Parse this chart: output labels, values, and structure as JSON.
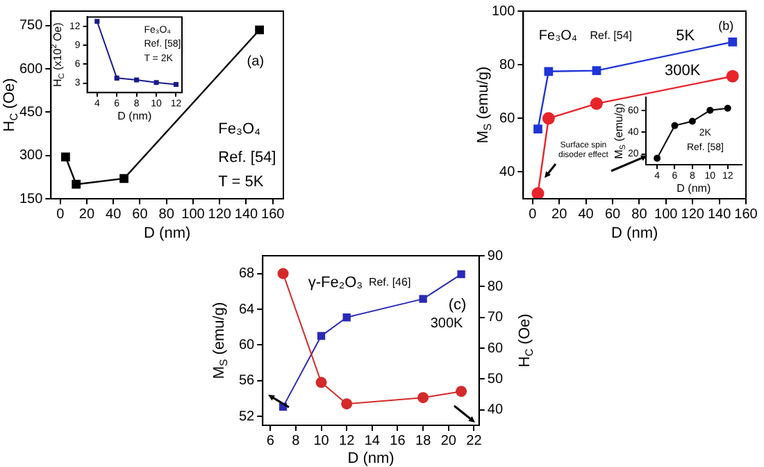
{
  "chart_data": [
    {
      "type": "line",
      "xlabel": "D (nm)",
      "ylabel": "H$_{C}$ (Oe)",
      "xlim": [
        -7,
        168
      ],
      "xticks": [
        0,
        20,
        40,
        60,
        80,
        100,
        120,
        140,
        160
      ],
      "ylim": [
        150,
        800
      ],
      "yticks": [
        150,
        300,
        450,
        600,
        750
      ],
      "x": [
        4,
        12,
        48,
        150
      ],
      "series": [
        {
          "color": "#000000",
          "marker": "square",
          "values": [
            295,
            200,
            220,
            735
          ]
        }
      ],
      "annotations": [
        "(a)",
        "Fe₃O₄",
        "Ref. [54]",
        "T = 5K"
      ]
    },
    {
      "type": "line",
      "xlabel": "D (nm)",
      "ylabel": "H$_{C}$ (x10$^{2}$ Oe)",
      "xlim": [
        3,
        12.6
      ],
      "xticks": [
        4,
        6,
        8,
        10,
        12
      ],
      "ylim": [
        1.5,
        13.5
      ],
      "yticks": [
        3,
        6,
        9,
        12
      ],
      "x": [
        4,
        6,
        8,
        10,
        12
      ],
      "series": [
        {
          "color": "#1a1a8c",
          "marker": "square",
          "values": [
            12.8,
            3.8,
            3.5,
            3.1,
            2.8
          ]
        }
      ],
      "annotations": [
        "Fe₃O₄",
        "Ref. [58]",
        "T = 2K"
      ]
    },
    {
      "type": "line",
      "xlabel": "D (nm)",
      "ylabel": "M$_{S}$ (emu/g)",
      "xlim": [
        -7,
        160
      ],
      "xticks": [
        0,
        20,
        40,
        60,
        80,
        100,
        120,
        140,
        160
      ],
      "ylim": [
        30,
        100
      ],
      "yticks": [
        40,
        60,
        80,
        100
      ],
      "x": [
        4,
        12,
        48,
        150
      ],
      "series": [
        {
          "name": "5K",
          "color": "#1f35d6",
          "marker": "square",
          "values": [
            56,
            77.5,
            77.8,
            88.5
          ]
        },
        {
          "name": "300K",
          "color": "#e8232a",
          "marker": "circle",
          "values": [
            32,
            60,
            65.5,
            75.7
          ]
        }
      ],
      "annotations": [
        "Fe₃O₄",
        "Ref. [54]",
        "(b)",
        "Surface spin disoder effect"
      ]
    },
    {
      "type": "line",
      "xlabel": "D (nm)",
      "ylabel": "M$_{S}$ (emu/g)",
      "xlim": [
        2.7,
        13.6
      ],
      "xticks": [
        4,
        6,
        8,
        10,
        12
      ],
      "ylim": [
        10,
        72
      ],
      "yticks": [
        20,
        40,
        60
      ],
      "x": [
        4,
        6,
        8,
        10,
        12
      ],
      "series": [
        {
          "color": "#000000",
          "marker": "circle",
          "values": [
            16,
            46,
            50,
            60,
            62
          ]
        }
      ],
      "annotations": [
        "2K",
        "Ref. [58]"
      ]
    },
    {
      "type": "line",
      "xlabel": "D (nm)",
      "ylabel": "M$_{S}$ (emu/g)",
      "y2label": "H$_{C}$ (Oe)",
      "xlim": [
        5.4,
        22.4
      ],
      "xticks": [
        6,
        8,
        10,
        12,
        14,
        16,
        18,
        20,
        22
      ],
      "ylim": [
        51,
        70
      ],
      "yticks": [
        52,
        56,
        60,
        64,
        68
      ],
      "y2lim": [
        35,
        90
      ],
      "y2ticks": [
        40,
        50,
        60,
        70,
        80,
        90
      ],
      "x": [
        7,
        10,
        12,
        18,
        21
      ],
      "series": [
        {
          "color": "#d42a2a",
          "marker": "circle",
          "values": [
            68,
            55.8,
            53.4,
            54.1,
            54.8
          ]
        },
        {
          "color": "#2a2ab8",
          "marker": "square",
          "axis": "y2",
          "values": [
            41,
            64,
            70,
            76,
            84
          ]
        }
      ],
      "annotations": [
        "γ-Fe₂O₃",
        "Ref. [46]",
        "(c)",
        "300K"
      ]
    }
  ]
}
